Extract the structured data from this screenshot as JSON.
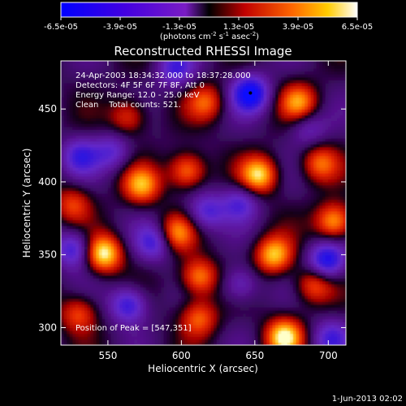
{
  "chart_data": {
    "type": "heatmap",
    "title": "Reconstructed RHESSI Image",
    "xlabel": "Heliocentric X (arcsec)",
    "ylabel": "Heliocentric Y (arcsec)",
    "xlim": [
      518,
      712
    ],
    "ylim": [
      288,
      483
    ],
    "xticks": [
      550,
      600,
      650,
      700
    ],
    "yticks": [
      300,
      350,
      400,
      450
    ],
    "colorbar": {
      "tick_labels": [
        "-6.5e-05",
        "-3.9e-05",
        "-1.3e-05",
        "1.3e-05",
        "3.9e-05",
        "6.5e-05"
      ],
      "units_label": "(photons cm",
      "units_exp1": "-2",
      "units_mid": " s",
      "units_exp2": "-1",
      "units_tail": " asec",
      "units_exp3": "-2",
      "units_close": ")",
      "range": [
        -6.5e-05,
        6.5e-05
      ]
    },
    "annotations": {
      "time": "24-Apr-2003 18:34:32.000 to 18:37:28.000",
      "detectors": "Detectors: 4F 5F 6F 7F 8F, Att 0",
      "energy": "Energy Range: 12.0 - 25.0 keV",
      "clean": "Clean    Total counts: 521.",
      "peak": "Position of Peak = [547,351]"
    },
    "peak_marker": {
      "x": 647,
      "y": 461
    },
    "blobs": [
      {
        "x": 547,
        "y": 351,
        "v": 1.0
      },
      {
        "x": 670,
        "y": 294,
        "v": 0.95
      },
      {
        "x": 653,
        "y": 405,
        "v": 0.9
      },
      {
        "x": 704,
        "y": 373,
        "v": 0.85
      },
      {
        "x": 604,
        "y": 408,
        "v": 0.75
      },
      {
        "x": 680,
        "y": 455,
        "v": 0.7
      },
      {
        "x": 573,
        "y": 398,
        "v": 0.75
      },
      {
        "x": 596,
        "y": 365,
        "v": 0.7
      },
      {
        "x": 612,
        "y": 335,
        "v": 0.75
      },
      {
        "x": 663,
        "y": 350,
        "v": 0.85
      },
      {
        "x": 690,
        "y": 330,
        "v": 0.6
      },
      {
        "x": 612,
        "y": 307,
        "v": 0.6
      },
      {
        "x": 564,
        "y": 445,
        "v": 0.55
      },
      {
        "x": 617,
        "y": 455,
        "v": 0.55
      },
      {
        "x": 526,
        "y": 385,
        "v": 0.5
      },
      {
        "x": 530,
        "y": 310,
        "v": 0.55
      },
      {
        "x": 694,
        "y": 413,
        "v": 0.6
      },
      {
        "x": 647,
        "y": 461,
        "v": -1.0
      },
      {
        "x": 699,
        "y": 346,
        "v": -0.9
      },
      {
        "x": 527,
        "y": 354,
        "v": -0.7
      },
      {
        "x": 564,
        "y": 316,
        "v": -0.75
      },
      {
        "x": 582,
        "y": 359,
        "v": -0.65
      },
      {
        "x": 617,
        "y": 380,
        "v": -0.6
      },
      {
        "x": 640,
        "y": 386,
        "v": -0.55
      },
      {
        "x": 596,
        "y": 478,
        "v": -0.6
      },
      {
        "x": 531,
        "y": 418,
        "v": -0.6
      },
      {
        "x": 702,
        "y": 293,
        "v": -0.55
      },
      {
        "x": 640,
        "y": 330,
        "v": -0.5
      },
      {
        "x": 553,
        "y": 421,
        "v": -0.5
      },
      {
        "x": 686,
        "y": 437,
        "v": -0.4
      }
    ]
  },
  "footer": {
    "date": "1-Jun-2013 02:02"
  },
  "colors": {
    "background": "#000000",
    "text": "#ffffff"
  }
}
